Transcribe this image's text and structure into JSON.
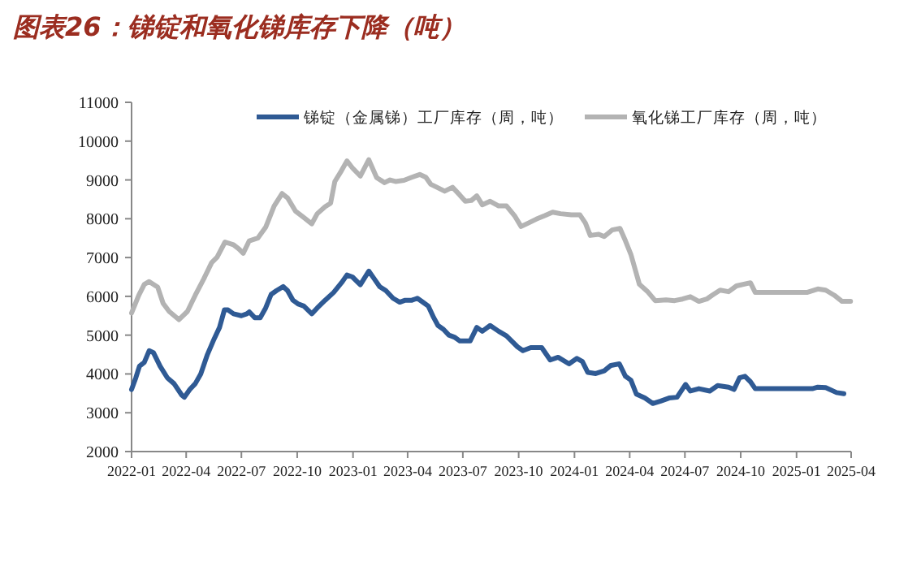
{
  "chart_data": {
    "type": "line",
    "title": "图表26：锑锭和氧化锑库存下降（吨）",
    "xlim": [
      "2022-01",
      "2025-04"
    ],
    "xticks": [
      "2022-01",
      "2022-04",
      "2022-07",
      "2022-10",
      "2023-01",
      "2023-04",
      "2023-07",
      "2023-10",
      "2024-01",
      "2024-04",
      "2024-07",
      "2024-10",
      "2025-01",
      "2025-04"
    ],
    "ylim": [
      2000,
      11000
    ],
    "yticks": [
      2000,
      3000,
      4000,
      5000,
      6000,
      7000,
      8000,
      9000,
      10000,
      11000
    ],
    "grid": false,
    "legend": "top",
    "marker": "none",
    "line_style": "solid",
    "series": [
      {
        "name": "锑锭（金属锑）工厂库存（周，吨）",
        "color": "#2f5a94",
        "x": [
          "2022-01-01",
          "2022-01-08",
          "2022-01-14",
          "2022-01-22",
          "2022-01-30",
          "2022-02-06",
          "2022-02-17",
          "2022-03-01",
          "2022-03-12",
          "2022-03-25",
          "2022-03-29",
          "2022-04-07",
          "2022-04-16",
          "2022-04-25",
          "2022-05-06",
          "2022-05-17",
          "2022-05-26",
          "2022-06-03",
          "2022-06-09",
          "2022-06-18",
          "2022-07-01",
          "2022-07-10",
          "2022-07-14",
          "2022-07-23",
          "2022-08-01",
          "2022-08-10",
          "2022-08-19",
          "2022-08-28",
          "2022-09-08",
          "2022-09-15",
          "2022-09-24",
          "2022-10-03",
          "2022-10-12",
          "2022-10-25",
          "2022-11-03",
          "2022-11-16",
          "2022-11-30",
          "2022-12-13",
          "2022-12-22",
          "2022-12-31",
          "2023-01-13",
          "2023-01-27",
          "2023-02-05",
          "2023-02-14",
          "2023-02-24",
          "2023-03-08",
          "2023-03-19",
          "2023-03-28",
          "2023-04-08",
          "2023-04-17",
          "2023-04-26",
          "2023-05-05",
          "2023-05-14",
          "2023-05-21",
          "2023-05-30",
          "2023-06-08",
          "2023-06-17",
          "2023-06-26",
          "2023-07-13",
          "2023-07-24",
          "2023-08-02",
          "2023-08-15",
          "2023-08-29",
          "2023-09-11",
          "2023-09-29",
          "2023-10-08",
          "2023-10-21",
          "2023-11-08",
          "2023-11-22",
          "2023-12-05",
          "2023-12-23",
          "2024-01-05",
          "2024-01-14",
          "2024-01-23",
          "2024-02-05",
          "2024-02-19",
          "2024-03-01",
          "2024-03-15",
          "2024-03-25",
          "2024-04-03",
          "2024-04-12",
          "2024-04-26",
          "2024-05-09",
          "2024-05-22",
          "2024-06-05",
          "2024-06-18",
          "2024-07-02",
          "2024-07-10",
          "2024-07-24",
          "2024-08-11",
          "2024-08-24",
          "2024-09-11",
          "2024-09-20",
          "2024-09-29",
          "2024-10-08",
          "2024-10-17",
          "2024-10-25",
          "2025-01-27",
          "2025-02-05",
          "2025-02-18",
          "2025-03-08",
          "2025-03-20"
        ],
        "values": [
          3600,
          3900,
          4200,
          4300,
          4600,
          4550,
          4200,
          3900,
          3750,
          3450,
          3400,
          3600,
          3750,
          4000,
          4500,
          4900,
          5200,
          5650,
          5650,
          5550,
          5500,
          5550,
          5600,
          5450,
          5450,
          5700,
          6050,
          6150,
          6250,
          6150,
          5900,
          5800,
          5750,
          5550,
          5700,
          5900,
          6100,
          6350,
          6550,
          6500,
          6300,
          6650,
          6450,
          6250,
          6150,
          5950,
          5850,
          5900,
          5900,
          5950,
          5850,
          5750,
          5450,
          5250,
          5150,
          5000,
          4950,
          4850,
          4850,
          5200,
          5100,
          5250,
          5100,
          4980,
          4700,
          4600,
          4680,
          4680,
          4360,
          4430,
          4260,
          4400,
          4320,
          4040,
          4010,
          4080,
          4220,
          4260,
          3940,
          3840,
          3480,
          3380,
          3240,
          3300,
          3380,
          3400,
          3730,
          3560,
          3620,
          3560,
          3700,
          3660,
          3600,
          3900,
          3940,
          3800,
          3620,
          3620,
          3660,
          3650,
          3520,
          3490
        ]
      },
      {
        "name": "氧化锑工厂库存（周，吨）",
        "color": "#b3b3b3",
        "x": [
          "2022-01-01",
          "2022-01-13",
          "2022-01-22",
          "2022-01-30",
          "2022-02-13",
          "2022-02-22",
          "2022-03-04",
          "2022-03-20",
          "2022-04-03",
          "2022-04-16",
          "2022-04-30",
          "2022-05-13",
          "2022-05-22",
          "2022-06-04",
          "2022-06-18",
          "2022-06-27",
          "2022-07-04",
          "2022-07-14",
          "2022-07-28",
          "2022-08-10",
          "2022-08-24",
          "2022-09-06",
          "2022-09-15",
          "2022-09-28",
          "2022-10-12",
          "2022-10-25",
          "2022-11-03",
          "2022-11-16",
          "2022-11-25",
          "2022-12-02",
          "2022-12-13",
          "2022-12-22",
          "2022-12-31",
          "2023-01-13",
          "2023-01-27",
          "2023-02-09",
          "2023-02-22",
          "2023-03-03",
          "2023-03-12",
          "2023-03-26",
          "2023-04-08",
          "2023-04-21",
          "2023-05-01",
          "2023-05-09",
          "2023-05-18",
          "2023-06-01",
          "2023-06-14",
          "2023-06-26",
          "2023-07-05",
          "2023-07-15",
          "2023-07-24",
          "2023-08-02",
          "2023-08-15",
          "2023-08-29",
          "2023-09-11",
          "2023-09-25",
          "2023-10-05",
          "2023-10-17",
          "2023-10-30",
          "2023-11-13",
          "2023-11-26",
          "2023-12-09",
          "2023-12-27",
          "2024-01-10",
          "2024-01-19",
          "2024-01-27",
          "2024-02-10",
          "2024-02-19",
          "2024-03-03",
          "2024-03-16",
          "2024-03-25",
          "2024-04-03",
          "2024-04-17",
          "2024-04-30",
          "2024-05-13",
          "2024-05-31",
          "2024-06-14",
          "2024-06-27",
          "2024-07-10",
          "2024-07-24",
          "2024-08-06",
          "2024-08-15",
          "2024-08-28",
          "2024-09-11",
          "2024-09-24",
          "2024-10-17",
          "2024-10-25",
          "2025-01-18",
          "2025-02-05",
          "2025-02-18",
          "2025-03-04",
          "2025-03-17",
          "2025-03-31"
        ],
        "values": [
          5570,
          6030,
          6310,
          6380,
          6240,
          5820,
          5610,
          5400,
          5610,
          6030,
          6450,
          6870,
          7010,
          7400,
          7330,
          7220,
          7110,
          7430,
          7500,
          7780,
          8330,
          8650,
          8540,
          8200,
          8030,
          7870,
          8130,
          8310,
          8400,
          8960,
          9240,
          9490,
          9310,
          9100,
          9520,
          9060,
          8930,
          9000,
          8960,
          8990,
          9070,
          9140,
          9070,
          8890,
          8820,
          8710,
          8810,
          8610,
          8450,
          8470,
          8590,
          8360,
          8450,
          8330,
          8330,
          8060,
          7800,
          7890,
          7990,
          8080,
          8170,
          8130,
          8100,
          8100,
          7890,
          7570,
          7600,
          7540,
          7710,
          7750,
          7430,
          7080,
          6310,
          6130,
          5890,
          5910,
          5890,
          5930,
          5990,
          5870,
          5930,
          6030,
          6160,
          6120,
          6270,
          6350,
          6100,
          6100,
          6190,
          6160,
          6030,
          5870,
          5870
        ]
      }
    ]
  }
}
